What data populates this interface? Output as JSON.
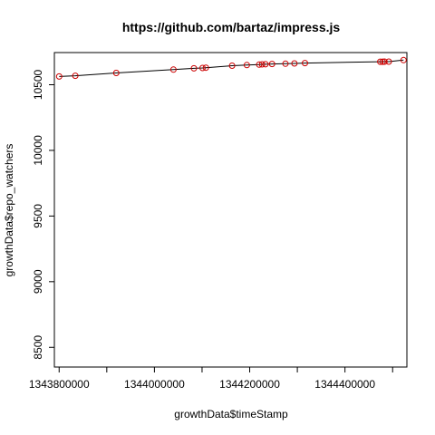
{
  "chart_data": {
    "type": "scatter",
    "title": "https://github.com/bartaz/impress.js",
    "xlabel": "growthData$timeStamp",
    "ylabel": "growthData$repo_watchers",
    "xlim": [
      1343790000,
      1344530000
    ],
    "ylim": [
      8350,
      10745
    ],
    "x_ticks": [
      1343800000,
      1344000000,
      1344200000,
      1344400000
    ],
    "x_tick_labels": [
      "1343800000",
      "1344000000",
      "1344200000",
      "1344400000"
    ],
    "y_ticks": [
      8500,
      9000,
      9500,
      10000,
      10500
    ],
    "y_tick_labels": [
      "8500",
      "9000",
      "9500",
      "10000",
      "10500"
    ],
    "x_minor_ticks": [
      1343900000,
      1344100000,
      1344300000,
      1344500000
    ],
    "grid": false,
    "series": [
      {
        "marker": "open-circle",
        "color": "#cc0000",
        "line_color": "#000000",
        "x": [
          1343800000,
          1343834000,
          1343920000,
          1344040000,
          1344083000,
          1344101000,
          1344108000,
          1344163000,
          1344194000,
          1344220000,
          1344226000,
          1344233000,
          1344247000,
          1344275000,
          1344294000,
          1344316000,
          1344474000,
          1344479000,
          1344483000,
          1344492000,
          1344523000
        ],
        "y": [
          10563,
          10568,
          10590,
          10615,
          10625,
          10628,
          10630,
          10645,
          10650,
          10653,
          10655,
          10656,
          10658,
          10660,
          10662,
          10665,
          10675,
          10675,
          10676,
          10676,
          10688
        ]
      }
    ]
  }
}
